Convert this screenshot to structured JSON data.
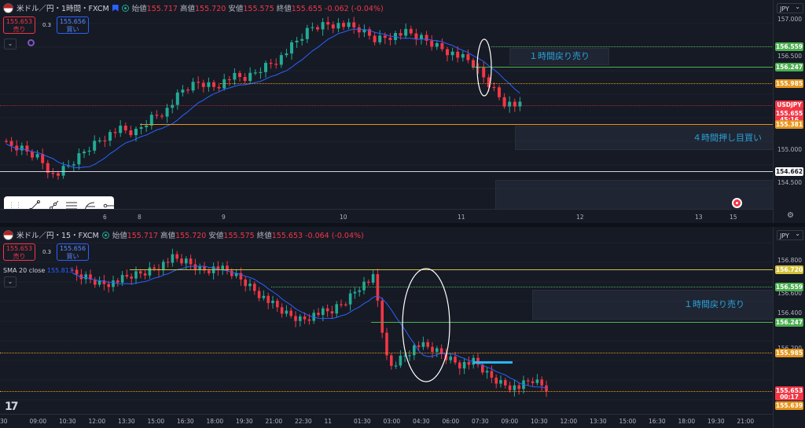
{
  "colors": {
    "up": "#22ab94",
    "down": "#f23645",
    "sma": "#2962ff",
    "sell": "#f23645",
    "buy": "#2962ff",
    "green_line": "#4caf50",
    "orange_line": "#e6951c",
    "yellow_line": "#d4c13a",
    "white_line": "#d1d4dc",
    "box_text": "#2aa3d8"
  },
  "top": {
    "header": {
      "symbol": "米ドル／円・1時間・FXCM",
      "o_label": "始値",
      "o": "155.717",
      "h_label": "高値",
      "h": "155.720",
      "l_label": "安値",
      "l": "155.575",
      "c_label": "終値",
      "c": "155.655",
      "chg": "-0.062 (-0.04%)"
    },
    "sell": {
      "price": "155.653",
      "label": "売り"
    },
    "buy": {
      "price": "155.656",
      "label": "買い"
    },
    "spread": "0.3",
    "currency": "JPY",
    "axis_ticks": [
      "157.000",
      "156.500",
      "155.000",
      "154.500"
    ],
    "price_tags": [
      {
        "v": "156.559",
        "bg": "#4caf50"
      },
      {
        "v": "156.247",
        "bg": "#4caf50"
      },
      {
        "v": "155.985",
        "bg": "#e6951c"
      },
      {
        "v": "USDJPY",
        "bg": "#f23645"
      },
      {
        "v": "155.655",
        "bg": "#f23645"
      },
      {
        "v": "45:16",
        "bg": "#f23645"
      },
      {
        "v": "155.381",
        "bg": "#e6951c"
      },
      {
        "v": "154.662",
        "bg": "#ffffff"
      }
    ],
    "time_labels": [
      "6",
      "8",
      "9",
      "10",
      "11",
      "12",
      "13",
      "15"
    ],
    "box1_text": "１時間戻り売り",
    "box2_text": "４時間押し目買い",
    "tools": [
      "trendline-icon",
      "ray-icon",
      "parallel-channel-icon",
      "fib-icon",
      "horizontal-ray-icon"
    ]
  },
  "bottom": {
    "header": {
      "symbol": "米ドル／円・15・FXCM",
      "o_label": "始値",
      "o": "155.717",
      "h_label": "高値",
      "h": "155.720",
      "l_label": "安値",
      "l": "155.575",
      "c_label": "終値",
      "c": "155.653",
      "chg": "-0.064 (-0.04%)"
    },
    "sell": {
      "price": "155.653",
      "label": "売り"
    },
    "buy": {
      "price": "155.656",
      "label": "買い"
    },
    "spread": "0.3",
    "sma_label": "SMA 20 close",
    "sma_value": "155.813",
    "currency": "JPY",
    "axis_ticks": [
      "156.800",
      "156.600",
      "156.400",
      "156.200",
      "155.800"
    ],
    "price_tags": [
      {
        "v": "156.720",
        "bg": "#d4c13a"
      },
      {
        "v": "156.559",
        "bg": "#4caf50"
      },
      {
        "v": "156.247",
        "bg": "#4caf50"
      },
      {
        "v": "155.985",
        "bg": "#e6951c"
      },
      {
        "v": "155.653",
        "bg": "#f23645"
      },
      {
        "v": "00:17",
        "bg": "#f23645"
      },
      {
        "v": "155.639",
        "bg": "#e6951c"
      }
    ],
    "time_labels": [
      "30",
      "09:00",
      "10:30",
      "12:00",
      "13:30",
      "15:00",
      "16:30",
      "18:00",
      "19:30",
      "21:00",
      "22:30",
      "11",
      "01:30",
      "03:00",
      "04:30",
      "06:00",
      "07:30",
      "09:00",
      "10:30",
      "12:00",
      "13:30",
      "15:00",
      "16:30",
      "18:00",
      "19:30",
      "21:00"
    ],
    "box_text": "１時間戻り売り"
  }
}
